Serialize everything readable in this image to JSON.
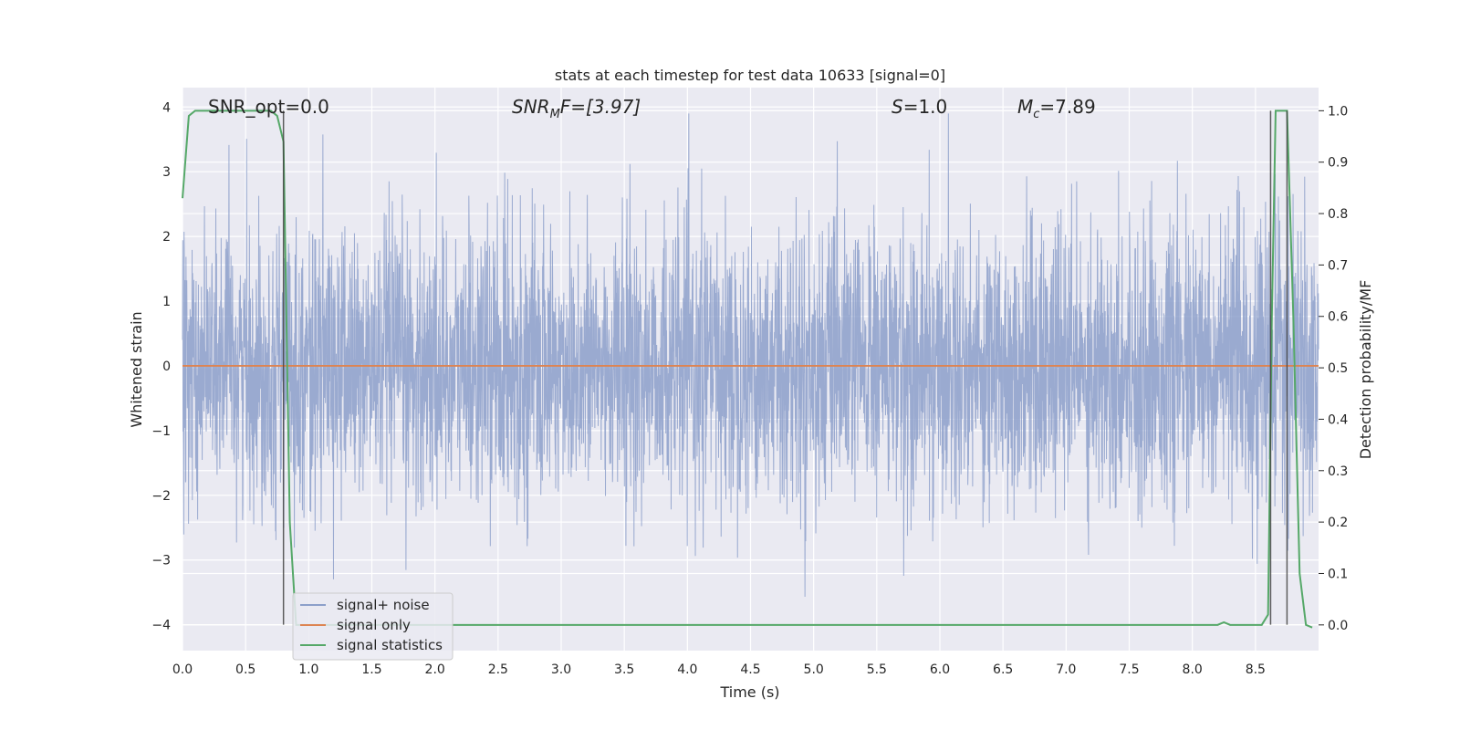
{
  "chart_data": {
    "type": "line",
    "title": "stats at each timestep for test data 10633 [signal=0]",
    "xlabel": "Time (s)",
    "ylabel": "Whitened strain",
    "y2label": "Detection probability/MF",
    "xlim": [
      0.0,
      9.0
    ],
    "ylim": [
      -4.4,
      4.3
    ],
    "y2lim": [
      -0.05,
      1.045
    ],
    "xticks": [
      "0.0",
      "0.5",
      "1.0",
      "1.5",
      "2.0",
      "2.5",
      "3.0",
      "3.5",
      "4.0",
      "4.5",
      "5.0",
      "5.5",
      "6.0",
      "6.5",
      "7.0",
      "7.5",
      "8.0",
      "8.5"
    ],
    "yticks": [
      "4",
      "3",
      "2",
      "1",
      "0",
      "−1",
      "−2",
      "−3",
      "−4"
    ],
    "y2ticks": [
      "1.0",
      "0.9",
      "0.8",
      "0.7",
      "0.6",
      "0.5",
      "0.4",
      "0.3",
      "0.2",
      "0.1",
      "0.0"
    ],
    "grid": true,
    "legend_placement": "lower-left",
    "annotations": {
      "snr_opt": "SNR_opt=0.0",
      "snr_mf_base": "SNR",
      "snr_mf_sub": "M",
      "snr_mf_rest": "F=[3.97]",
      "s_italic": "S",
      "s_rest": "=1.0",
      "mc_base": "M",
      "mc_sub": "c",
      "mc_rest": "=7.89"
    },
    "series": [
      {
        "name": "signal+ noise",
        "color": "#8c9fca",
        "kind": "noise",
        "x_range": [
          0.0,
          9.0
        ],
        "amplitude_range": [
          -4.0,
          3.9
        ],
        "typical_envelope": [
          -2.4,
          2.4
        ]
      },
      {
        "name": "signal only",
        "color": "#dd8452",
        "x": [
          0.0,
          9.0
        ],
        "y": [
          0.0,
          0.0
        ]
      },
      {
        "name": "signal statistics",
        "color": "#55a868",
        "axis": "right",
        "x": [
          0.0,
          0.05,
          0.1,
          0.2,
          0.4,
          0.6,
          0.7,
          0.75,
          0.8,
          0.85,
          0.9,
          1.0,
          2.0,
          4.0,
          6.0,
          8.0,
          8.2,
          8.25,
          8.3,
          8.4,
          8.5,
          8.55,
          8.6,
          8.63,
          8.66,
          8.7,
          8.75,
          8.8,
          8.85,
          8.9,
          8.95
        ],
        "y": [
          0.83,
          0.99,
          1.0,
          1.0,
          1.0,
          1.0,
          1.0,
          0.99,
          0.94,
          0.2,
          0.0,
          0.0,
          0.0,
          0.0,
          0.0,
          0.0,
          0.0,
          0.005,
          0.0,
          0.0,
          0.0,
          0.0,
          0.02,
          0.6,
          1.0,
          1.0,
          1.0,
          0.6,
          0.1,
          0.0,
          -0.005
        ]
      }
    ],
    "vertical_markers": [
      0.8,
      8.62,
      8.75
    ]
  }
}
